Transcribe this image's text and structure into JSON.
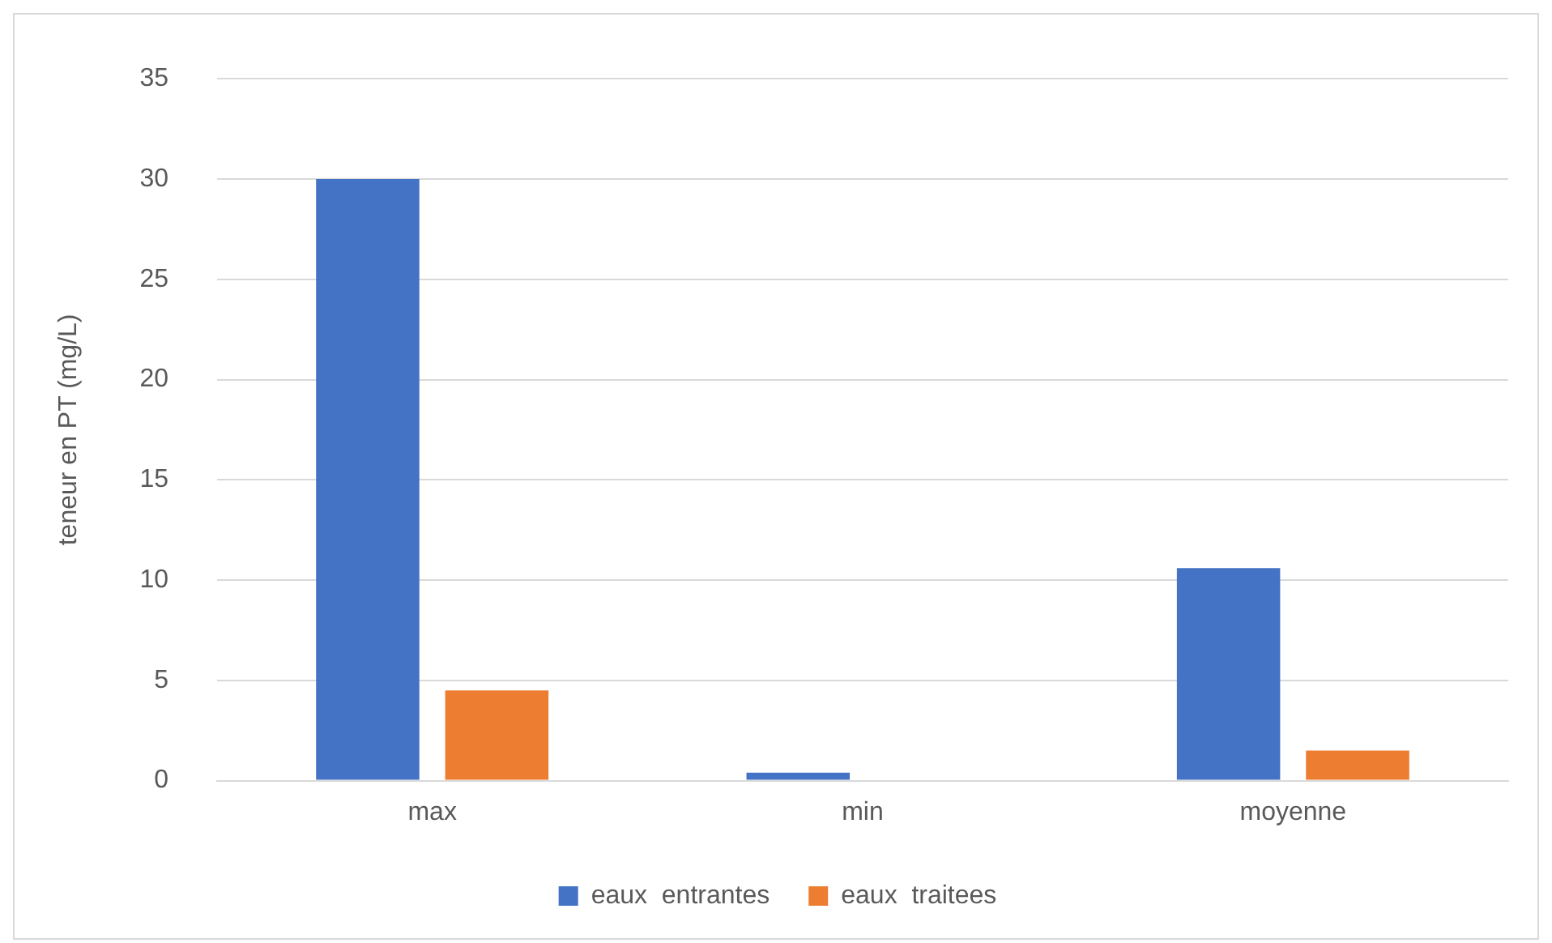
{
  "chart_data": {
    "type": "bar",
    "ylabel": "teneur en PT (mg/L)",
    "categories": [
      "max",
      "min",
      "moyenne"
    ],
    "series": [
      {
        "name": "eaux  entrantes",
        "color": "#4472c4",
        "values": [
          30,
          0.4,
          10.6
        ]
      },
      {
        "name": "eaux  traitees",
        "color": "#ed7d31",
        "values": [
          4.5,
          null,
          1.5
        ]
      }
    ],
    "ylim": [
      0,
      35
    ],
    "yticks": [
      0,
      5,
      10,
      15,
      20,
      25,
      30,
      35
    ],
    "grid": "y",
    "legend": "bottom"
  }
}
